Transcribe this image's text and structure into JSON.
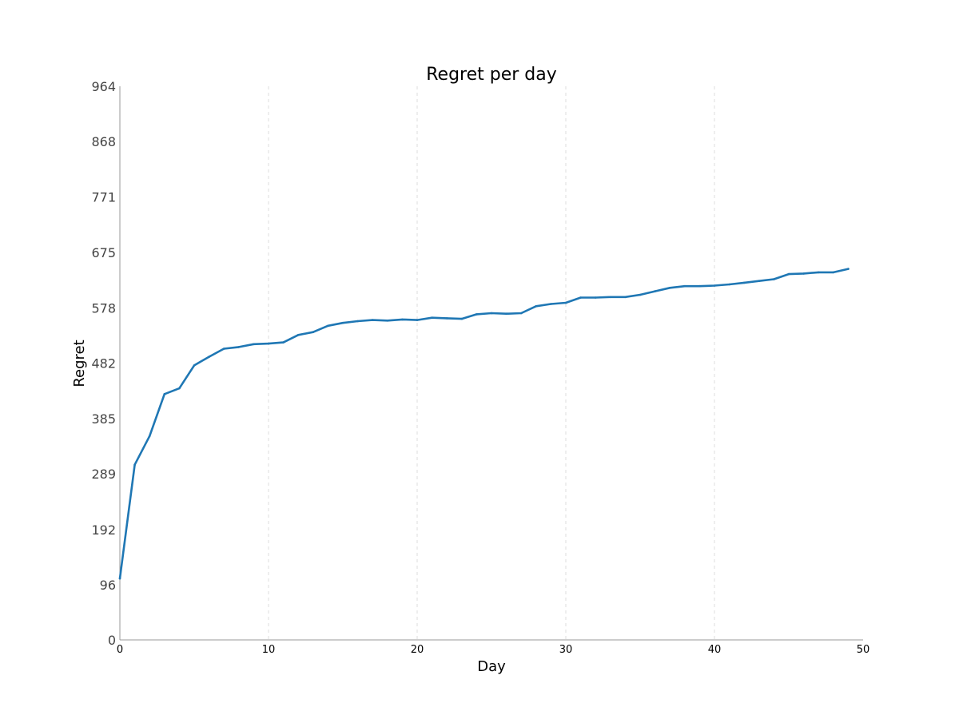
{
  "chart_data": {
    "type": "line",
    "title": "Regret per day",
    "xlabel": "Day",
    "ylabel": "Regret",
    "xlim": [
      0,
      50
    ],
    "ylim": [
      0,
      964
    ],
    "xticks": [
      0,
      10,
      20,
      30,
      40,
      50
    ],
    "yticks": [
      0,
      96,
      192,
      289,
      385,
      482,
      578,
      675,
      771,
      868,
      964
    ],
    "grid": "x-dashed",
    "colors": {
      "line": "#1f77b4",
      "axis": "#999999",
      "grid": "#dddddd"
    },
    "series": [
      {
        "x": [
          0,
          1,
          2,
          3,
          4,
          5,
          6,
          7,
          8,
          9,
          10,
          11,
          12,
          13,
          14,
          15,
          16,
          17,
          18,
          19,
          20,
          21,
          22,
          23,
          24,
          25,
          26,
          27,
          28,
          29,
          30,
          31,
          32,
          33,
          34,
          35,
          36,
          37,
          38,
          39,
          40,
          41,
          42,
          43,
          44,
          45,
          46,
          47,
          48,
          49
        ],
        "y": [
          107,
          305,
          355,
          428,
          438,
          478,
          493,
          507,
          510,
          515,
          516,
          518,
          531,
          536,
          547,
          552,
          555,
          557,
          556,
          558,
          557,
          561,
          560,
          559,
          567,
          569,
          568,
          569,
          581,
          585,
          587,
          596,
          596,
          597,
          597,
          601,
          607,
          613,
          616,
          616,
          617,
          619,
          622,
          625,
          628,
          637,
          638,
          640,
          640,
          646
        ]
      }
    ]
  }
}
